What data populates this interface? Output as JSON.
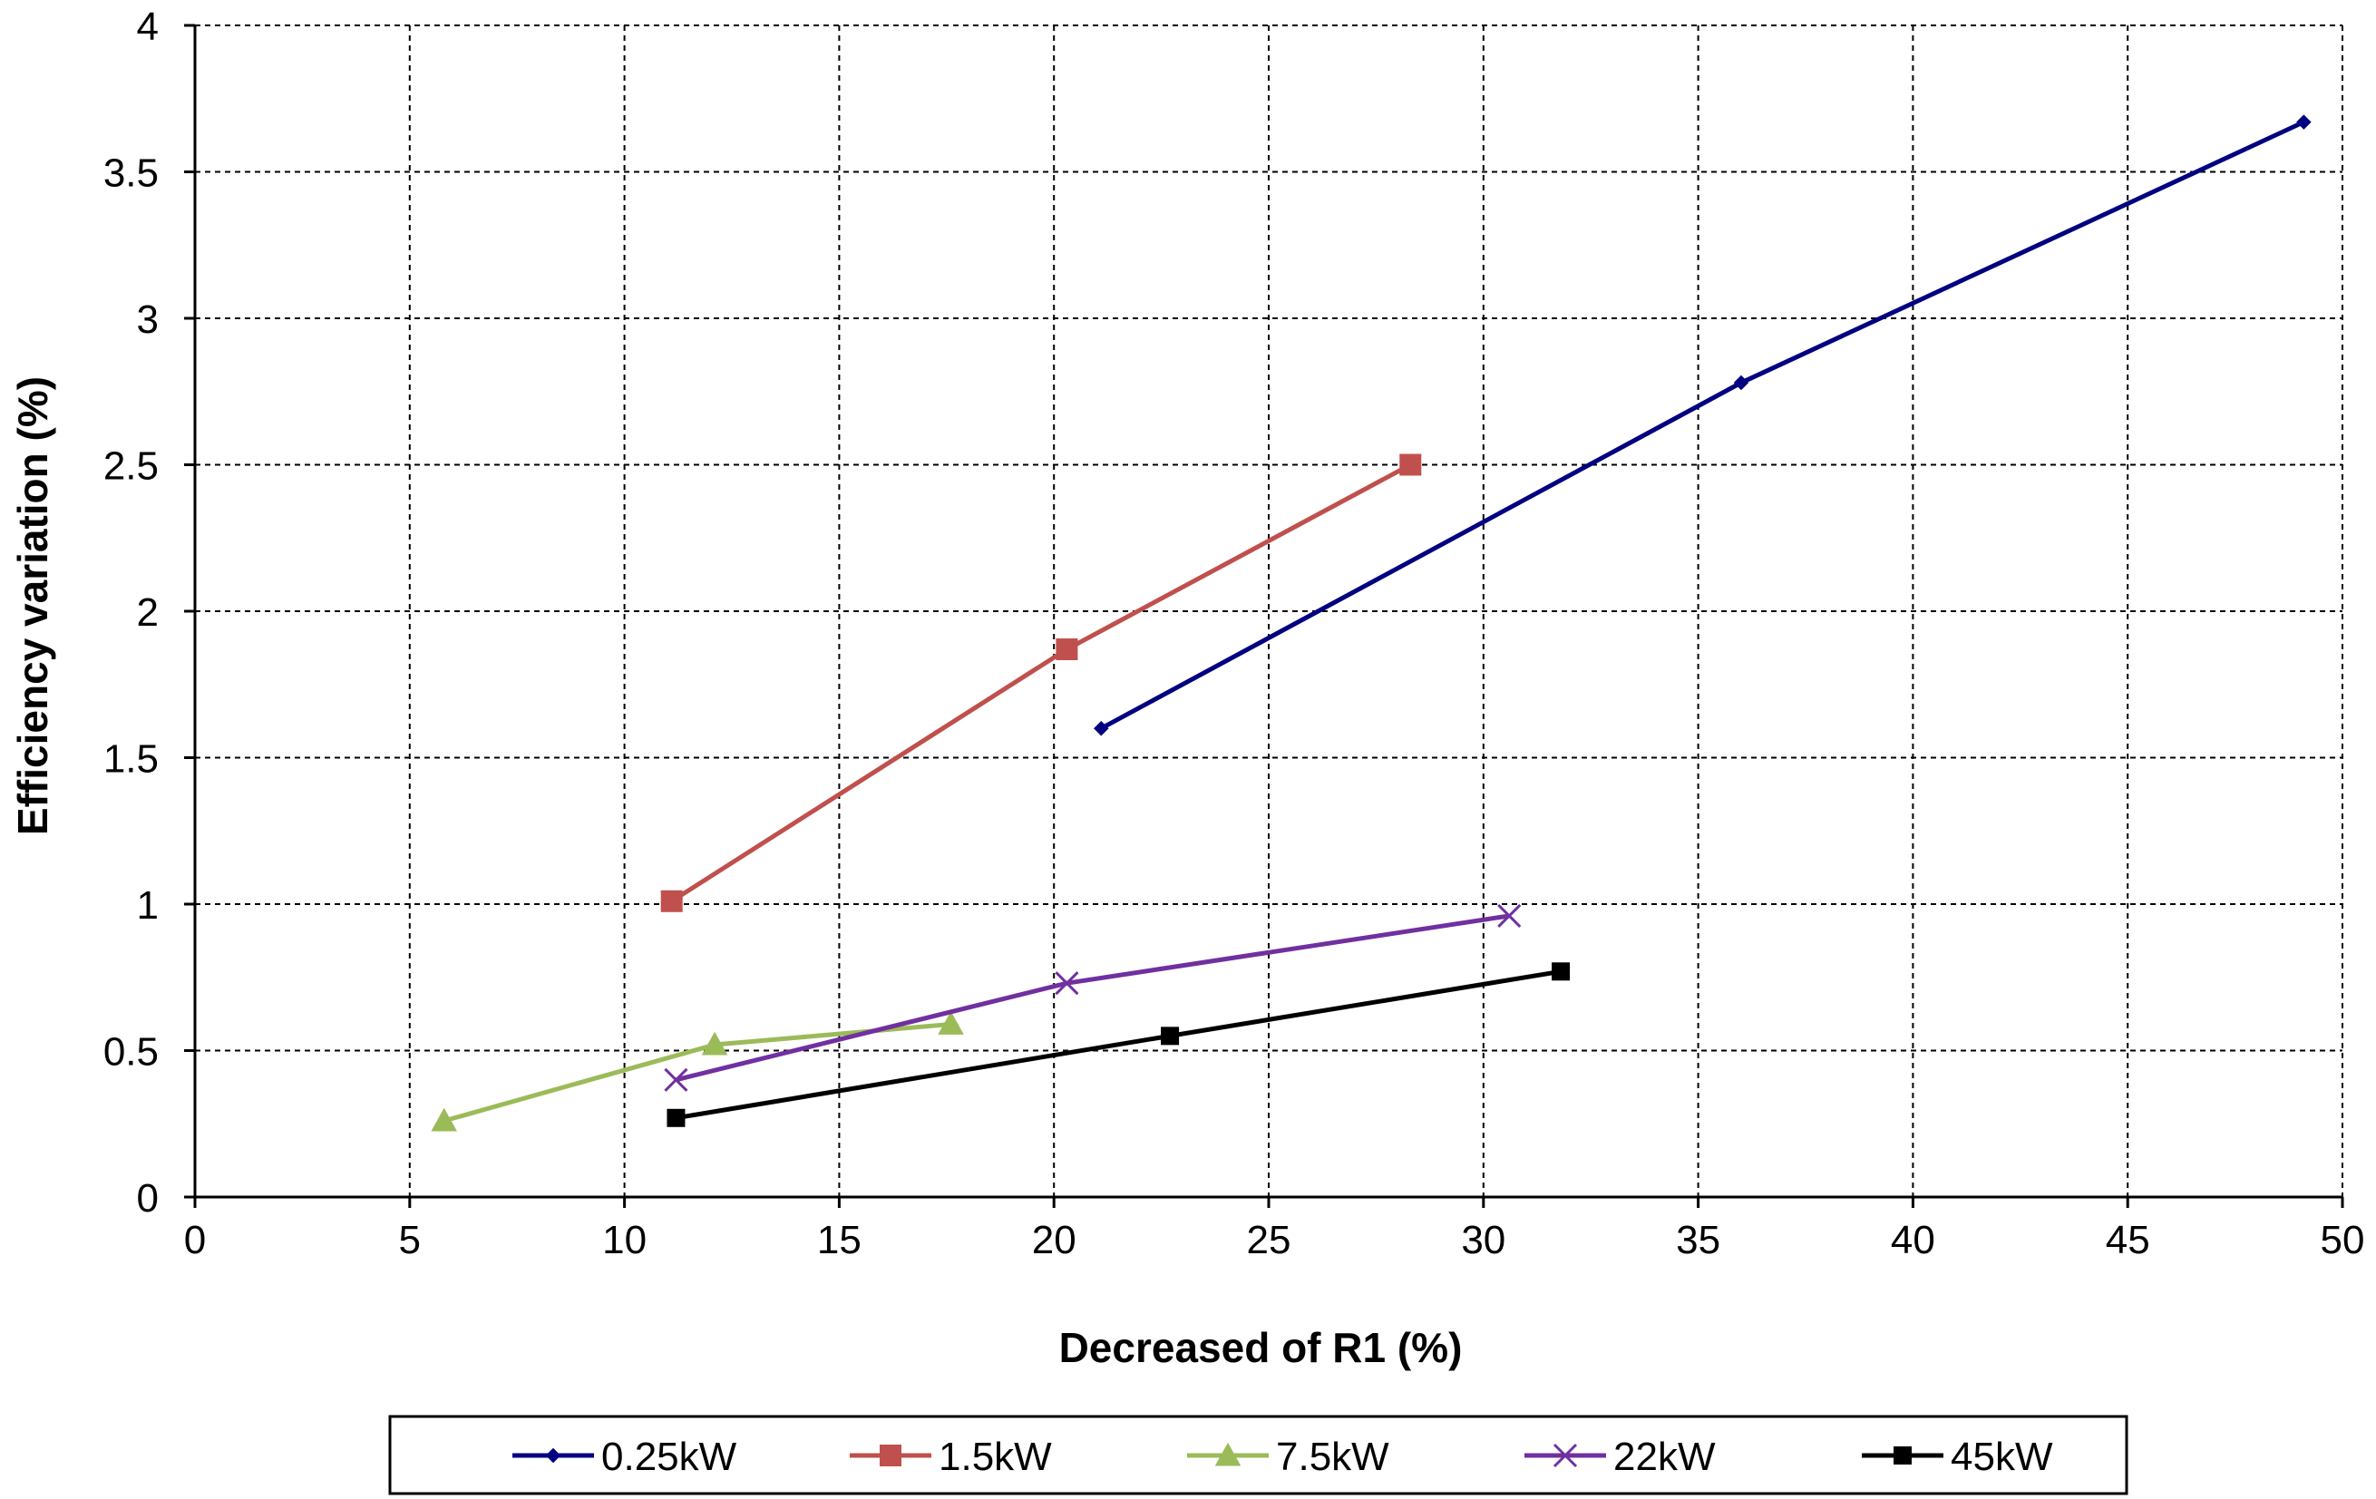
{
  "chart_data": {
    "type": "line",
    "xlabel": "Decreased of R1 (%)",
    "ylabel": "Efficiency variation (%)",
    "xlim": [
      0,
      50
    ],
    "ylim": [
      0,
      4
    ],
    "xticks": [
      0,
      5,
      10,
      15,
      20,
      25,
      30,
      35,
      40,
      45,
      50
    ],
    "yticks": [
      0,
      0.5,
      1,
      1.5,
      2,
      2.5,
      3,
      3.5,
      4
    ],
    "grid": true,
    "legend_position": "bottom",
    "series": [
      {
        "name": "0.25kW",
        "color": "#000080",
        "marker": "diamond",
        "points": [
          [
            21.1,
            1.6
          ],
          [
            36.0,
            2.78
          ],
          [
            49.1,
            3.67
          ]
        ]
      },
      {
        "name": "1.5kW",
        "color": "#c0504d",
        "marker": "square",
        "points": [
          [
            11.1,
            1.01
          ],
          [
            20.3,
            1.87
          ],
          [
            28.3,
            2.5
          ]
        ]
      },
      {
        "name": "7.5kW",
        "color": "#9bbb59",
        "marker": "triangle",
        "points": [
          [
            5.8,
            0.26
          ],
          [
            12.1,
            0.52
          ],
          [
            17.6,
            0.59
          ]
        ]
      },
      {
        "name": "22kW",
        "color": "#7030a0",
        "marker": "x",
        "points": [
          [
            11.2,
            0.4
          ],
          [
            20.3,
            0.73
          ],
          [
            30.6,
            0.96
          ]
        ]
      },
      {
        "name": "45kW",
        "color": "#000000",
        "marker": "square",
        "points": [
          [
            11.2,
            0.27
          ],
          [
            22.7,
            0.55
          ],
          [
            31.8,
            0.77
          ]
        ]
      }
    ]
  }
}
